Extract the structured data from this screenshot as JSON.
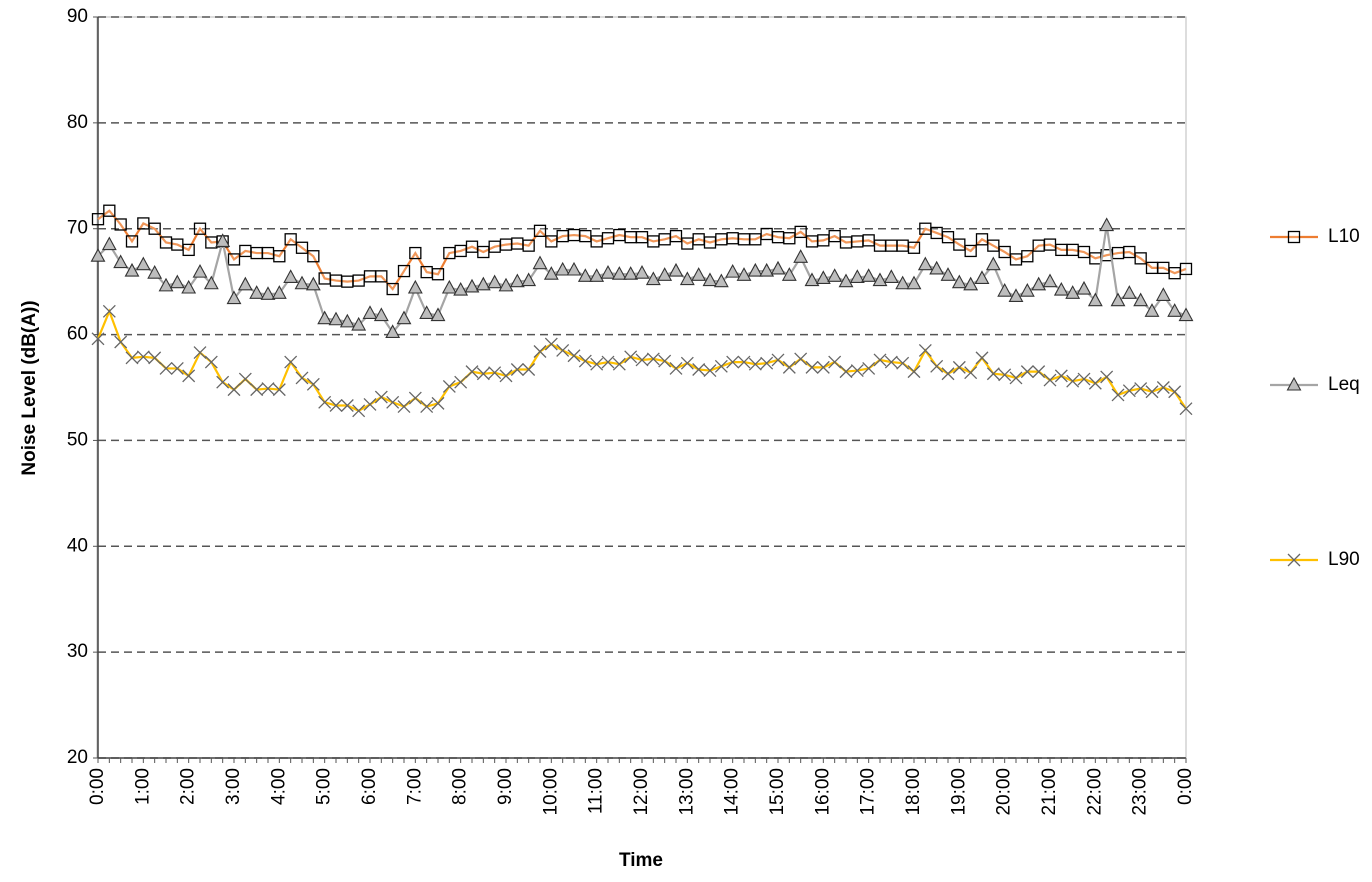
{
  "chart_data": {
    "type": "line",
    "y_label": "Noise Level (dB(A))",
    "x_label": "Time",
    "categories": [
      "0:00",
      null,
      null,
      null,
      "1:00",
      null,
      null,
      null,
      "2:00",
      null,
      null,
      null,
      "3:00",
      null,
      null,
      null,
      "4:00",
      null,
      null,
      null,
      "5:00",
      null,
      null,
      null,
      "6:00",
      null,
      null,
      null,
      "7:00",
      null,
      null,
      null,
      "8:00",
      null,
      null,
      null,
      "9:00",
      null,
      null,
      null,
      "10:00",
      null,
      null,
      null,
      "11:00",
      null,
      null,
      null,
      "12:00",
      null,
      null,
      null,
      "13:00",
      null,
      null,
      null,
      "14:00",
      null,
      null,
      null,
      "15:00",
      null,
      null,
      null,
      "16:00",
      null,
      null,
      null,
      "17:00",
      null,
      null,
      null,
      "18:00",
      null,
      null,
      null,
      "19:00",
      null,
      null,
      null,
      "20:00",
      null,
      null,
      null,
      "21:00",
      null,
      null,
      null,
      "22:00",
      null,
      null,
      null,
      "23:00",
      null,
      null,
      null,
      "0:00"
    ],
    "series": [
      {
        "name": "L10",
        "color": "#ed7d31",
        "marker": "square",
        "values": [
          70.9,
          71.7,
          70.4,
          68.8,
          70.5,
          70.0,
          68.7,
          68.5,
          68.0,
          70.0,
          68.7,
          68.8,
          67.1,
          67.9,
          67.7,
          67.7,
          67.4,
          69.0,
          68.2,
          67.4,
          65.3,
          65.1,
          65.0,
          65.1,
          65.5,
          65.5,
          64.3,
          66.0,
          67.7,
          65.9,
          65.7,
          67.7,
          67.9,
          68.3,
          67.8,
          68.3,
          68.5,
          68.6,
          68.4,
          69.8,
          68.8,
          69.3,
          69.4,
          69.3,
          68.8,
          69.1,
          69.4,
          69.2,
          69.2,
          68.8,
          69.0,
          69.3,
          68.6,
          69.0,
          68.7,
          69.0,
          69.1,
          69.0,
          69.0,
          69.5,
          69.2,
          69.1,
          69.7,
          68.8,
          68.9,
          69.3,
          68.7,
          68.8,
          68.9,
          68.4,
          68.4,
          68.4,
          68.2,
          70.0,
          69.6,
          69.2,
          68.5,
          67.9,
          69.0,
          68.4,
          67.8,
          67.1,
          67.4,
          68.4,
          68.5,
          68.0,
          68.0,
          67.8,
          67.2,
          67.5,
          67.7,
          67.8,
          67.2,
          66.3,
          66.3,
          65.8,
          66.2
        ]
      },
      {
        "name": "Leq",
        "color": "#a5a5a5",
        "marker": "triangle",
        "values": [
          67.4,
          68.5,
          66.8,
          66.0,
          66.6,
          65.8,
          64.6,
          64.9,
          64.4,
          65.9,
          64.8,
          68.8,
          63.4,
          64.7,
          63.9,
          63.8,
          63.9,
          65.4,
          64.8,
          64.7,
          61.5,
          61.4,
          61.2,
          60.9,
          62.0,
          61.8,
          60.2,
          61.5,
          64.4,
          62.0,
          61.8,
          64.4,
          64.2,
          64.5,
          64.7,
          64.9,
          64.6,
          65.0,
          65.1,
          66.7,
          65.7,
          66.1,
          66.1,
          65.5,
          65.5,
          65.8,
          65.7,
          65.7,
          65.8,
          65.2,
          65.6,
          66.0,
          65.2,
          65.6,
          65.1,
          65.0,
          65.9,
          65.6,
          66.0,
          66.0,
          66.2,
          65.6,
          67.3,
          65.1,
          65.3,
          65.5,
          65.0,
          65.4,
          65.5,
          65.1,
          65.4,
          64.8,
          64.8,
          66.6,
          66.2,
          65.6,
          64.9,
          64.7,
          65.3,
          66.6,
          64.1,
          63.6,
          64.1,
          64.7,
          65.0,
          64.2,
          63.9,
          64.3,
          63.2,
          70.3,
          63.2,
          63.9,
          63.2,
          62.2,
          63.7,
          62.2,
          61.8
        ]
      },
      {
        "name": "L90",
        "color": "#ffc000",
        "marker": "cross",
        "values": [
          59.6,
          62.2,
          59.3,
          57.8,
          57.9,
          57.8,
          56.8,
          56.8,
          56.1,
          58.3,
          57.4,
          55.5,
          54.8,
          55.8,
          54.8,
          54.9,
          54.8,
          57.4,
          55.9,
          55.3,
          53.6,
          53.3,
          53.3,
          52.8,
          53.4,
          54.1,
          53.6,
          53.2,
          54.0,
          53.2,
          53.5,
          55.1,
          55.5,
          56.5,
          56.3,
          56.4,
          56.1,
          56.7,
          56.7,
          58.4,
          59.1,
          58.5,
          58.0,
          57.5,
          57.2,
          57.4,
          57.2,
          57.9,
          57.6,
          57.7,
          57.5,
          56.8,
          57.3,
          56.7,
          56.6,
          57.0,
          57.4,
          57.4,
          57.2,
          57.3,
          57.6,
          56.9,
          57.7,
          56.9,
          56.9,
          57.4,
          56.5,
          56.6,
          56.8,
          57.6,
          57.4,
          57.3,
          56.5,
          58.5,
          57.0,
          56.3,
          56.9,
          56.4,
          57.8,
          56.3,
          56.2,
          55.9,
          56.5,
          56.5,
          55.7,
          56.1,
          55.6,
          55.8,
          55.4,
          56.0,
          54.3,
          54.7,
          54.9,
          54.6,
          55.0,
          54.6,
          53.0
        ]
      }
    ],
    "ylim": [
      20,
      90
    ],
    "yticks": [
      20,
      30,
      40,
      50,
      60,
      70,
      80,
      90
    ],
    "grid": true,
    "legend": "right"
  }
}
